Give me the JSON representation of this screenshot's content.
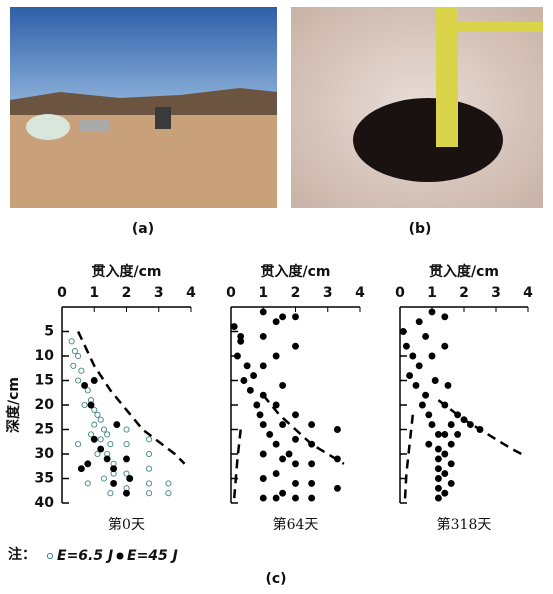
{
  "figure": {
    "photo_a_label": "(a)",
    "photo_b_label": "(b)",
    "caption": "(c)",
    "note_label": "注："
  },
  "chart_data": [
    {
      "type": "scatter",
      "title": "贯入度/cm",
      "subtitle": "第0天",
      "y_label": "深度/cm",
      "xlim": [
        0,
        4
      ],
      "xticks": [
        0,
        1,
        2,
        3,
        4
      ],
      "ylim": [
        0,
        40
      ],
      "yticks": [
        5,
        10,
        15,
        20,
        25,
        30,
        35,
        40
      ],
      "y_inverted": true,
      "ytick_labels": true,
      "series": [
        {
          "name": "E=6.5 J",
          "marker": "open",
          "color": "#3f8585",
          "x": [
            0.3,
            0.4,
            0.5,
            0.35,
            0.6,
            0.5,
            0.7,
            0.8,
            0.9,
            0.7,
            1.0,
            1.1,
            1.2,
            1.0,
            1.3,
            1.4,
            1.2,
            1.5,
            1.4,
            1.6,
            0.5,
            0.6,
            0.8,
            1.3,
            1.5,
            2.0,
            2.0,
            2.0,
            2.0,
            2.0,
            2.7,
            2.7,
            2.7,
            2.7,
            2.7,
            3.3,
            3.3,
            0.9,
            1.1,
            1.6
          ],
          "y": [
            7,
            9,
            10,
            12,
            13,
            15,
            16,
            17,
            19,
            20,
            21,
            22,
            23,
            24,
            25,
            26,
            27,
            28,
            30,
            32,
            28,
            33,
            36,
            35,
            38,
            25,
            28,
            31,
            34,
            37,
            27,
            30,
            33,
            36,
            38,
            36,
            38,
            26,
            30,
            34
          ]
        },
        {
          "name": "E=45 J",
          "marker": "filled",
          "color": "#000000",
          "x": [
            0.7,
            0.9,
            1.0,
            0.8,
            1.2,
            1.4,
            1.6,
            1.6,
            2.0,
            2.0,
            2.1,
            1.7,
            1.0,
            0.6
          ],
          "y": [
            16,
            20,
            27,
            32,
            29,
            31,
            33,
            36,
            38,
            31,
            35,
            24,
            15,
            33
          ]
        }
      ],
      "curves": [
        {
          "x": [
            0.5,
            1,
            1.5,
            2,
            2.5,
            3,
            3.5,
            3.8
          ],
          "y": [
            5,
            12,
            17,
            21,
            25,
            27.5,
            30,
            32
          ]
        }
      ]
    },
    {
      "type": "scatter",
      "title": "贯入度/cm",
      "subtitle": "第64天",
      "xlim": [
        0,
        4
      ],
      "xticks": [
        0,
        1,
        2,
        3,
        4
      ],
      "ylim": [
        0,
        40
      ],
      "yticks": [
        5,
        10,
        15,
        20,
        25,
        30,
        35,
        40
      ],
      "y_inverted": true,
      "ytick_labels": false,
      "series": [
        {
          "marker": "filled",
          "color": "#000000",
          "x": [
            0.1,
            0.3,
            0.2,
            0.5,
            0.4,
            0.6,
            0.8,
            0.7,
            0.9,
            1.0,
            1.0,
            1.0,
            1.0,
            1.0,
            1.0,
            1.0,
            1.0,
            1.4,
            1.4,
            1.4,
            1.4,
            1.4,
            1.4,
            1.6,
            1.6,
            1.6,
            1.6,
            1.6,
            2.0,
            2.0,
            2.0,
            2.0,
            2.0,
            2.0,
            2.0,
            2.5,
            2.5,
            2.5,
            2.5,
            2.5,
            3.3,
            3.3,
            3.3,
            0.3,
            1.2,
            1.8
          ],
          "y": [
            4,
            7,
            10,
            12,
            15,
            17,
            20,
            14,
            22,
            1,
            6,
            12,
            18,
            24,
            30,
            35,
            39,
            3,
            10,
            20,
            28,
            34,
            39,
            2,
            16,
            24,
            31,
            38,
            2,
            8,
            22,
            27,
            32,
            36,
            39,
            24,
            28,
            32,
            36,
            39,
            25,
            31,
            37,
            6,
            26,
            30
          ]
        }
      ],
      "curves": [
        {
          "x": [
            1,
            1.5,
            2,
            2.5,
            3,
            3.5
          ],
          "y": [
            18,
            22,
            25,
            28,
            30,
            32
          ]
        },
        {
          "x": [
            0.3,
            0.25,
            0.2,
            0.15,
            0.1
          ],
          "y": [
            25,
            28,
            31,
            35,
            39
          ]
        }
      ]
    },
    {
      "type": "scatter",
      "title": "贯入度/cm",
      "subtitle": "第318天",
      "xlim": [
        0,
        4
      ],
      "xticks": [
        0,
        1,
        2,
        3,
        4
      ],
      "ylim": [
        0,
        40
      ],
      "yticks": [
        5,
        10,
        15,
        20,
        25,
        30,
        35,
        40
      ],
      "y_inverted": true,
      "ytick_labels": false,
      "series": [
        {
          "marker": "filled",
          "color": "#000000",
          "x": [
            0.1,
            0.2,
            0.4,
            0.3,
            0.6,
            0.5,
            0.8,
            0.7,
            0.9,
            1.0,
            0.6,
            0.8,
            1.0,
            1.1,
            1.2,
            1.2,
            1.2,
            1.2,
            1.2,
            1.2,
            1.2,
            1.4,
            1.4,
            1.4,
            1.4,
            1.4,
            1.4,
            1.4,
            1.6,
            1.6,
            1.6,
            1.6,
            1.8,
            1.8,
            2.0,
            2.2,
            2.5,
            1.0,
            0.9,
            1.5
          ],
          "y": [
            5,
            8,
            10,
            14,
            12,
            16,
            18,
            20,
            22,
            24,
            3,
            6,
            10,
            15,
            26,
            29,
            31,
            33,
            35,
            37,
            39,
            2,
            8,
            20,
            26,
            30,
            34,
            38,
            24,
            28,
            32,
            36,
            22,
            26,
            23,
            24,
            25,
            1,
            28,
            16
          ]
        }
      ],
      "curves": [
        {
          "x": [
            1.2,
            1.6,
            2,
            2.5,
            3,
            3.5,
            3.8
          ],
          "y": [
            19,
            21,
            23,
            25,
            27,
            29,
            30
          ]
        },
        {
          "x": [
            0.4,
            0.3,
            0.2,
            0.15
          ],
          "y": [
            22,
            28,
            34,
            40
          ]
        }
      ]
    }
  ]
}
